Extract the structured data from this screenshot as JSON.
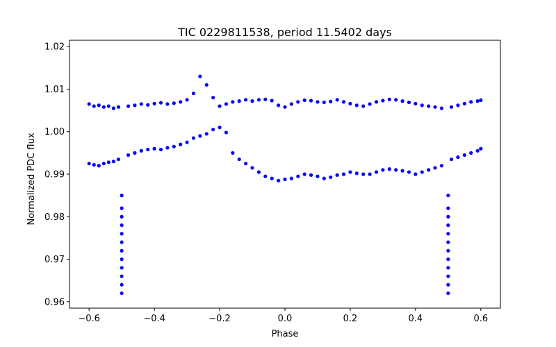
{
  "chart_data": {
    "type": "scatter",
    "title": "TIC 0229811538, period 11.5402 days",
    "xlabel": "Phase",
    "ylabel": "Normalized PDC flux",
    "xlim": [
      -0.66,
      0.66
    ],
    "ylim": [
      0.9585,
      1.0215
    ],
    "xticks": [
      -0.6,
      -0.4,
      -0.2,
      0.0,
      0.2,
      0.4,
      0.6
    ],
    "xtick_labels": [
      "−0.6",
      "−0.4",
      "−0.2",
      "0.0",
      "0.2",
      "0.4",
      "0.6"
    ],
    "yticks": [
      0.96,
      0.97,
      0.98,
      0.99,
      1.0,
      1.01,
      1.02
    ],
    "ytick_labels": [
      "0.96",
      "0.97",
      "0.98",
      "0.99",
      "1.00",
      "1.01",
      "1.02"
    ],
    "grid": false,
    "marker_color": "#0000ff",
    "series": [
      {
        "name": "upper branch (baseline)",
        "x": [
          -0.6,
          -0.585,
          -0.57,
          -0.555,
          -0.54,
          -0.525,
          -0.51,
          -0.48,
          -0.46,
          -0.44,
          -0.42,
          -0.4,
          -0.38,
          -0.36,
          -0.34,
          -0.32,
          -0.3,
          -0.28,
          -0.26,
          -0.24,
          -0.22,
          -0.2,
          -0.18,
          -0.16,
          -0.14,
          -0.12,
          -0.1,
          -0.08,
          -0.06,
          -0.04,
          -0.02,
          0.0,
          0.02,
          0.04,
          0.06,
          0.08,
          0.1,
          0.12,
          0.14,
          0.16,
          0.18,
          0.2,
          0.22,
          0.24,
          0.26,
          0.28,
          0.3,
          0.32,
          0.34,
          0.36,
          0.38,
          0.4,
          0.42,
          0.44,
          0.46,
          0.48,
          0.51,
          0.53,
          0.55,
          0.57,
          0.59,
          0.6
        ],
        "y": [
          1.0065,
          1.006,
          1.0062,
          1.0058,
          1.006,
          1.0055,
          1.0058,
          1.006,
          1.0062,
          1.0065,
          1.0063,
          1.0066,
          1.0068,
          1.0065,
          1.0067,
          1.007,
          1.0075,
          1.009,
          1.013,
          1.011,
          1.008,
          1.006,
          1.0065,
          1.007,
          1.0072,
          1.0075,
          1.0072,
          1.0075,
          1.0076,
          1.0073,
          1.0062,
          1.0058,
          1.0065,
          1.007,
          1.0074,
          1.0073,
          1.007,
          1.0069,
          1.0071,
          1.0075,
          1.007,
          1.0066,
          1.0062,
          1.006,
          1.0065,
          1.007,
          1.0073,
          1.0076,
          1.0075,
          1.0072,
          1.0069,
          1.0066,
          1.0062,
          1.006,
          1.0058,
          1.0055,
          1.0058,
          1.0062,
          1.0066,
          1.007,
          1.0072,
          1.0074
        ]
      },
      {
        "name": "lower branch",
        "x": [
          -0.6,
          -0.585,
          -0.57,
          -0.555,
          -0.54,
          -0.525,
          -0.51,
          -0.48,
          -0.46,
          -0.44,
          -0.42,
          -0.4,
          -0.38,
          -0.36,
          -0.34,
          -0.32,
          -0.3,
          -0.28,
          -0.26,
          -0.24,
          -0.22,
          -0.2,
          -0.18,
          -0.16,
          -0.14,
          -0.12,
          -0.1,
          -0.08,
          -0.06,
          -0.04,
          -0.02,
          0.0,
          0.02,
          0.04,
          0.06,
          0.08,
          0.1,
          0.12,
          0.14,
          0.16,
          0.18,
          0.2,
          0.22,
          0.24,
          0.26,
          0.28,
          0.3,
          0.32,
          0.34,
          0.36,
          0.38,
          0.4,
          0.42,
          0.44,
          0.46,
          0.48,
          0.51,
          0.53,
          0.55,
          0.57,
          0.59,
          0.6
        ],
        "y": [
          0.9925,
          0.9922,
          0.992,
          0.9925,
          0.9928,
          0.993,
          0.9935,
          0.9945,
          0.995,
          0.9955,
          0.9958,
          0.996,
          0.9958,
          0.9962,
          0.9965,
          0.997,
          0.9975,
          0.9985,
          0.999,
          0.9995,
          1.0005,
          1.001,
          0.9998,
          0.995,
          0.9935,
          0.9925,
          0.9915,
          0.9905,
          0.9895,
          0.989,
          0.9885,
          0.9888,
          0.989,
          0.9895,
          0.99,
          0.9898,
          0.9895,
          0.989,
          0.9893,
          0.9898,
          0.99,
          0.9905,
          0.9902,
          0.99,
          0.99,
          0.9905,
          0.991,
          0.9912,
          0.991,
          0.9908,
          0.9905,
          0.99,
          0.9905,
          0.991,
          0.9915,
          0.992,
          0.9935,
          0.994,
          0.9945,
          0.995,
          0.9955,
          0.996
        ]
      },
      {
        "name": "eclipse points",
        "x": [
          -0.5,
          -0.5,
          -0.5,
          -0.5,
          -0.5,
          -0.5,
          -0.5,
          -0.5,
          -0.5,
          -0.5,
          -0.5,
          -0.5,
          0.5,
          0.5,
          0.5,
          0.5,
          0.5,
          0.5,
          0.5,
          0.5,
          0.5,
          0.5,
          0.5,
          0.5
        ],
        "y": [
          0.962,
          0.964,
          0.966,
          0.968,
          0.97,
          0.972,
          0.974,
          0.976,
          0.978,
          0.98,
          0.982,
          0.985,
          0.962,
          0.964,
          0.966,
          0.968,
          0.97,
          0.972,
          0.974,
          0.976,
          0.978,
          0.98,
          0.982,
          0.985
        ]
      }
    ]
  }
}
